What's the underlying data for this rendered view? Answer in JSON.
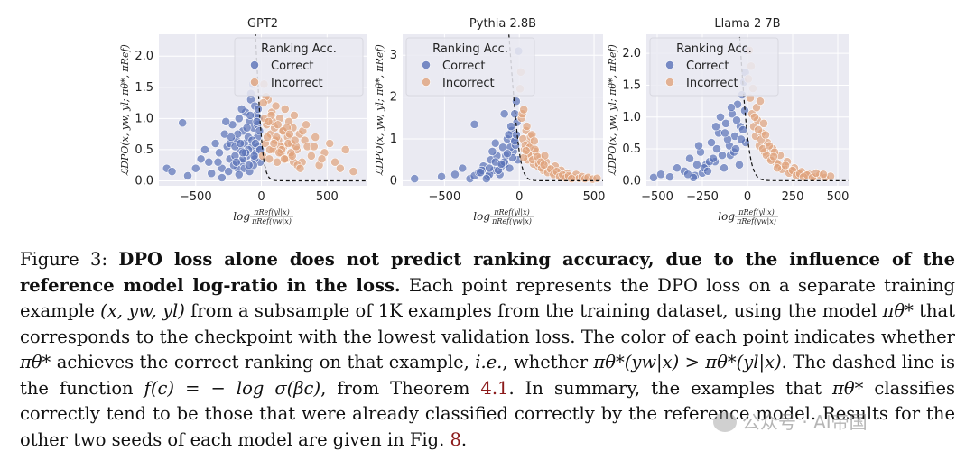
{
  "chart_data": [
    {
      "type": "scatter",
      "title": "GPT2",
      "ylabel": "ℒDPO(x, yw, yl; πθ*, πRef)",
      "xlabel": "log πRef(yl|x) / πRef(yw|x)",
      "xlim": [
        -780,
        800
      ],
      "ylim": [
        -0.08,
        2.35
      ],
      "xticks": [
        -500,
        0,
        500
      ],
      "xtick_labels": [
        "−500",
        "0",
        "500"
      ],
      "yticks": [
        0.0,
        0.5,
        1.0,
        1.5,
        2.0
      ],
      "ytick_labels": [
        "0.0",
        "0.5",
        "1.0",
        "1.5",
        "2.0"
      ],
      "beta": 0.05,
      "legend_title": "Ranking Acc.",
      "legend_loc": "top-right",
      "series": [
        {
          "name": "Correct",
          "color": "#5a72b8",
          "x": [
            -720,
            -680,
            -600,
            -560,
            -500,
            -460,
            -430,
            -400,
            -380,
            -350,
            -320,
            -300,
            -280,
            -260,
            -240,
            -220,
            -200,
            -190,
            -180,
            -170,
            -160,
            -150,
            -140,
            -130,
            -120,
            -110,
            -100,
            -90,
            -80,
            -70,
            -60,
            -50,
            -40,
            -30,
            -20,
            -10,
            -250,
            -210,
            -170,
            -130,
            -90,
            -50,
            -20,
            -300,
            -240,
            -180,
            -140,
            -100,
            -60,
            -30,
            -150,
            -110,
            -70,
            -40,
            -15,
            -200,
            -120,
            -80,
            -45,
            -25,
            -330,
            -270,
            -230,
            -190,
            -160,
            -95,
            -55,
            -35,
            -10,
            -140,
            -85,
            -65
          ],
          "y": [
            0.2,
            0.15,
            0.93,
            0.08,
            0.2,
            0.35,
            0.5,
            0.3,
            0.12,
            0.6,
            0.45,
            0.2,
            0.75,
            0.55,
            0.35,
            0.9,
            0.4,
            0.65,
            0.2,
            1.0,
            0.5,
            0.3,
            0.8,
            0.6,
            1.1,
            0.4,
            0.7,
            0.95,
            1.3,
            0.55,
            0.85,
            1.2,
            0.45,
            0.7,
            1.0,
            0.3,
            0.15,
            0.25,
            0.1,
            0.2,
            0.15,
            0.35,
            0.55,
            0.05,
            0.6,
            0.75,
            0.35,
            0.5,
            0.25,
            0.9,
            1.15,
            0.85,
            0.65,
            1.05,
            0.8,
            0.55,
            0.45,
            1.4,
            0.6,
            1.15,
            0.3,
            0.95,
            0.7,
            0.3,
            0.6,
            0.25,
            0.4,
            0.95,
            0.5,
            0.45,
            1.05,
            1.55
          ]
        },
        {
          "name": "Incorrect",
          "color": "#e0a27c",
          "x": [
            10,
            20,
            30,
            40,
            50,
            60,
            70,
            80,
            90,
            100,
            110,
            120,
            130,
            140,
            150,
            160,
            170,
            180,
            190,
            200,
            210,
            220,
            230,
            240,
            250,
            270,
            290,
            310,
            330,
            350,
            380,
            410,
            440,
            480,
            520,
            560,
            600,
            640,
            700,
            25,
            45,
            65,
            85,
            105,
            125,
            145,
            165,
            185,
            205,
            225,
            245,
            265,
            35,
            75,
            115,
            155,
            195,
            235,
            275,
            315,
            15,
            55,
            95,
            135,
            175,
            215,
            255,
            295,
            340,
            400,
            460
          ],
          "y": [
            0.4,
            1.55,
            0.6,
            0.9,
            1.3,
            0.35,
            0.75,
            1.1,
            0.5,
            0.85,
            1.2,
            0.3,
            0.65,
            1.0,
            0.45,
            0.8,
            0.55,
            1.15,
            0.35,
            0.7,
            0.95,
            0.4,
            0.6,
            0.85,
            1.05,
            0.5,
            0.75,
            0.3,
            0.65,
            0.55,
            0.4,
            0.7,
            0.25,
            0.45,
            0.6,
            0.3,
            0.2,
            0.5,
            0.15,
            1.0,
            0.7,
            0.5,
            0.95,
            0.65,
            0.9,
            0.55,
            0.8,
            0.35,
            0.6,
            0.45,
            0.3,
            0.55,
            1.35,
            1.05,
            0.7,
            0.5,
            0.85,
            0.4,
            0.25,
            0.8,
            1.25,
            0.95,
            0.6,
            0.45,
            0.35,
            0.75,
            0.65,
            0.2,
            0.9,
            0.55,
            0.35
          ]
        }
      ]
    },
    {
      "type": "scatter",
      "title": "Pythia 2.8B",
      "ylabel": "ℒDPO(x, yw, yl; πθ*, πRef)",
      "xlabel": "log πRef(yl|x) / πRef(yw|x)",
      "xlim": [
        -780,
        560
      ],
      "ylim": [
        -0.12,
        3.5
      ],
      "xticks": [
        -500,
        0,
        500
      ],
      "xtick_labels": [
        "−500",
        "0",
        "500"
      ],
      "yticks": [
        0,
        1,
        2,
        3
      ],
      "ytick_labels": [
        "0",
        "1",
        "2",
        "3"
      ],
      "beta": 0.05,
      "legend_title": "Ranking Acc.",
      "legend_loc": "top-left",
      "series": [
        {
          "name": "Correct",
          "color": "#5a72b8",
          "x": [
            -700,
            -520,
            -430,
            -380,
            -330,
            -300,
            -270,
            -240,
            -210,
            -190,
            -170,
            -150,
            -130,
            -110,
            -95,
            -80,
            -65,
            -50,
            -40,
            -30,
            -20,
            -10,
            -250,
            -200,
            -160,
            -120,
            -90,
            -60,
            -35,
            -15,
            -220,
            -180,
            -140,
            -100,
            -70,
            -45,
            -25,
            -300,
            -260,
            -100,
            -55,
            -30,
            -120,
            -200,
            -160,
            -80,
            -20,
            -5
          ],
          "y": [
            0.05,
            0.1,
            0.15,
            0.3,
            0.05,
            0.12,
            0.2,
            0.35,
            0.1,
            0.5,
            0.25,
            0.6,
            0.15,
            0.8,
            0.4,
            1.0,
            0.3,
            1.2,
            0.7,
            1.6,
            1.9,
            0.5,
            0.25,
            0.15,
            0.45,
            0.35,
            0.6,
            0.8,
            1.0,
            1.4,
            0.05,
            0.7,
            0.25,
            0.45,
            1.1,
            0.55,
            0.85,
            1.35,
            0.2,
            1.6,
            1.3,
            0.95,
            0.4,
            0.3,
            0.9,
            0.65,
            1.1,
            3.1
          ]
        },
        {
          "name": "Incorrect",
          "color": "#e0a27c",
          "x": [
            5,
            15,
            25,
            35,
            45,
            55,
            65,
            80,
            95,
            110,
            125,
            140,
            160,
            180,
            200,
            220,
            240,
            260,
            280,
            300,
            320,
            340,
            360,
            380,
            400,
            420,
            440,
            460,
            490,
            520,
            20,
            40,
            60,
            75,
            90,
            105,
            130,
            150,
            170,
            190,
            210,
            230,
            250,
            270,
            290,
            310,
            330,
            350,
            10,
            30,
            50,
            70,
            85,
            100,
            120,
            145,
            165,
            30,
            45
          ],
          "y": [
            2.2,
            1.5,
            1.0,
            0.75,
            1.2,
            0.5,
            0.9,
            0.6,
            0.4,
            0.7,
            0.35,
            0.55,
            0.25,
            0.45,
            0.3,
            0.2,
            0.35,
            0.15,
            0.25,
            0.12,
            0.18,
            0.1,
            0.08,
            0.15,
            0.06,
            0.1,
            0.05,
            0.08,
            0.04,
            0.06,
            1.6,
            0.85,
            0.65,
            1.05,
            0.5,
            0.75,
            0.4,
            0.3,
            0.6,
            0.2,
            0.28,
            0.15,
            0.22,
            0.1,
            0.14,
            0.07,
            0.12,
            0.05,
            2.6,
            1.7,
            1.3,
            0.8,
            1.1,
            0.95,
            0.58,
            0.45,
            0.38,
            0.55,
            0.72
          ]
        }
      ]
    },
    {
      "type": "scatter",
      "title": "Llama 2 7B",
      "ylabel": "ℒDPO(x, yw, yl; πθ*, πRef)",
      "xlabel": "log πRef(yl|x) / πRef(yw|x)",
      "xlim": [
        -560,
        560
      ],
      "ylim": [
        -0.08,
        2.3
      ],
      "xticks": [
        -500,
        -250,
        0,
        250,
        500
      ],
      "xtick_labels": [
        "−500",
        "−250",
        "0",
        "250",
        "500"
      ],
      "yticks": [
        0.0,
        0.5,
        1.0,
        1.5,
        2.0
      ],
      "ytick_labels": [
        "0.0",
        "0.5",
        "1.0",
        "1.5",
        "2.0"
      ],
      "beta": 0.05,
      "legend_title": "Ranking Acc.",
      "legend_loc": "top-left",
      "series": [
        {
          "name": "Correct",
          "color": "#5a72b8",
          "x": [
            -520,
            -480,
            -430,
            -390,
            -350,
            -320,
            -290,
            -260,
            -230,
            -200,
            -180,
            -160,
            -140,
            -120,
            -100,
            -85,
            -70,
            -55,
            -40,
            -30,
            -20,
            -10,
            -250,
            -210,
            -170,
            -130,
            -95,
            -60,
            -35,
            -15,
            -300,
            -270,
            -240,
            -190,
            -150,
            -110,
            -75,
            -45,
            -25,
            -5,
            -330,
            -280,
            -220,
            -175,
            -125,
            -90,
            -65,
            -12
          ],
          "y": [
            0.05,
            0.1,
            0.06,
            0.2,
            0.15,
            0.35,
            0.08,
            0.45,
            0.25,
            0.6,
            0.3,
            0.75,
            0.4,
            0.9,
            0.55,
            1.05,
            0.7,
            1.2,
            0.85,
            1.35,
            1.55,
            0.6,
            0.12,
            0.3,
            0.5,
            0.2,
            0.4,
            0.95,
            0.65,
            1.1,
            0.05,
            0.55,
            0.2,
            0.35,
            1.0,
            0.65,
            0.45,
            0.25,
            0.8,
            2.05,
            0.1,
            0.25,
            0.15,
            0.85,
            0.75,
            1.15,
            0.5,
            1.7
          ]
        },
        {
          "name": "Incorrect",
          "color": "#e0a27c",
          "x": [
            5,
            15,
            25,
            35,
            45,
            55,
            65,
            80,
            95,
            110,
            125,
            140,
            160,
            180,
            200,
            220,
            240,
            260,
            280,
            300,
            320,
            340,
            370,
            400,
            430,
            460,
            20,
            40,
            60,
            75,
            90,
            105,
            130,
            150,
            170,
            190,
            210,
            230,
            250,
            270,
            290,
            310,
            330,
            360,
            10,
            30,
            50,
            70,
            85,
            100,
            120,
            145,
            165,
            380,
            420
          ],
          "y": [
            1.6,
            1.3,
            1.05,
            0.85,
            0.7,
            0.95,
            0.55,
            0.75,
            0.45,
            0.6,
            0.35,
            0.5,
            0.28,
            0.4,
            0.22,
            0.3,
            0.15,
            0.2,
            0.1,
            0.14,
            0.08,
            0.1,
            0.06,
            0.09,
            0.05,
            0.07,
            1.8,
            1.0,
            0.8,
            0.65,
            0.9,
            0.4,
            0.32,
            0.45,
            0.25,
            0.18,
            0.24,
            0.12,
            0.16,
            0.08,
            0.11,
            0.06,
            0.09,
            0.05,
            2.05,
            1.45,
            1.15,
            1.25,
            0.5,
            0.72,
            0.55,
            0.38,
            0.2,
            0.12,
            0.1
          ]
        }
      ]
    }
  ],
  "caption": {
    "label": "Figure 3:",
    "bold": "DPO loss alone does not predict ranking accuracy, due to the influence of the reference model log-ratio in the loss.",
    "t1": " Each point represents the DPO loss on a separate training example ",
    "m1": "(x, yw, yl)",
    "t2": " from a subsample of 1K examples from the training dataset, using the model ",
    "m2": "πθ*",
    "t3": " that corresponds to the checkpoint with the lowest validation loss. The color of each point indicates whether ",
    "m3": "πθ*",
    "t4": " achieves the correct ranking on that example, ",
    "ie": "i.e.",
    "t5": ", whether ",
    "m4": "πθ*(yw|x) > πθ*(yl|x)",
    "t6": ". The dashed line is the function ",
    "m5": "f(c) = − log σ(βc)",
    "t7": ", from Theorem ",
    "ref1": "4.1",
    "t8": ". In summary, the examples that ",
    "m6": "πθ*",
    "t9": " classifies correctly tend to be those that were already classified correctly by the reference model. Results for the other two seeds of each model are given in Fig. ",
    "ref2": "8",
    "t10": "."
  },
  "watermark": "公众号 · AI帝国"
}
